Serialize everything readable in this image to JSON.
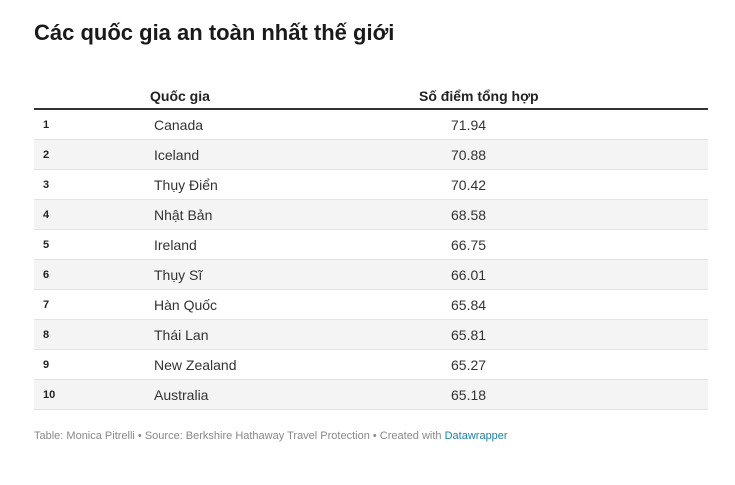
{
  "header": {
    "title": "Các quốc gia an toàn nhất thế giới"
  },
  "table": {
    "columns": [
      "Quốc gia",
      "Số điểm tổng hợp"
    ],
    "rows": [
      [
        1,
        "Canada",
        71.94
      ],
      [
        2,
        "Iceland",
        70.88
      ],
      [
        3,
        "Thụy Điển",
        70.42
      ],
      [
        4,
        "Nhật Bản",
        68.58
      ],
      [
        5,
        "Ireland",
        66.75
      ],
      [
        6,
        "Thụy Sĩ",
        66.01
      ],
      [
        7,
        "Hàn Quốc",
        65.84
      ],
      [
        8,
        "Thái Lan",
        65.81
      ],
      [
        9,
        "New Zealand",
        65.27
      ],
      [
        10,
        "Australia",
        65.18
      ]
    ]
  },
  "footer": {
    "text": "Table: Monica Pitrelli • Source: Berkshire Hathaway Travel Protection • Created with",
    "link": "Datawrapper"
  }
}
